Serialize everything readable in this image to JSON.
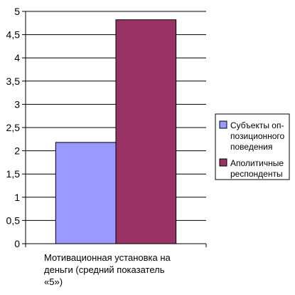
{
  "chart_data": {
    "type": "bar",
    "categories": [
      "Мотивационная установка на деньги (средний показатель «5»)"
    ],
    "category_lines": [
      "Мотивационная установка на",
      "деньги (средний показатель",
      "«5»)"
    ],
    "series": [
      {
        "name": "Субъекты оп-позиционного поведения",
        "name_lines": [
          "Субъекты оп-",
          "позиционного",
          "поведения"
        ],
        "values": [
          2.18
        ],
        "color": "#9999ff"
      },
      {
        "name": "Аполитичные респонденты",
        "name_lines": [
          "Аполитичные",
          "респонденты"
        ],
        "values": [
          4.82
        ],
        "color": "#993366"
      }
    ],
    "yticks": [
      "0",
      "0,5",
      "1",
      "1,5",
      "2",
      "2,5",
      "3",
      "3,5",
      "4",
      "4,5",
      "5"
    ],
    "ylim": [
      0,
      5
    ],
    "grid": true,
    "legend": "right"
  }
}
